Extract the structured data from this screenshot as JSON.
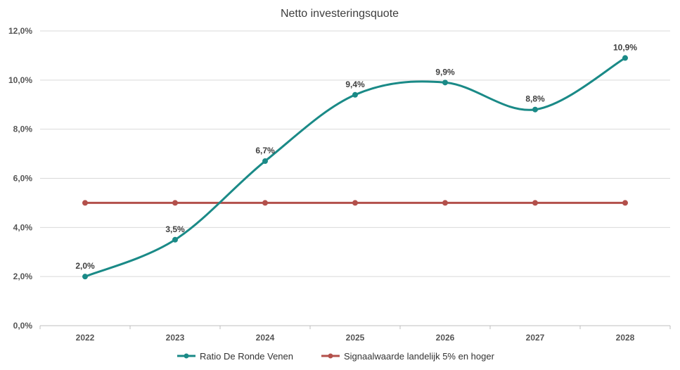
{
  "chart_data": {
    "type": "line",
    "title": "Netto investeringsquote",
    "categories": [
      "2022",
      "2023",
      "2024",
      "2025",
      "2026",
      "2027",
      "2028"
    ],
    "y_tick_labels": [
      "0,0%",
      "2,0%",
      "4,0%",
      "6,0%",
      "8,0%",
      "10,0%",
      "12,0%"
    ],
    "ylim": [
      0,
      12
    ],
    "grid": true,
    "legend_position": "bottom",
    "series": [
      {
        "name": "Ratio De Ronde Venen",
        "values": [
          2.0,
          3.5,
          6.7,
          9.4,
          9.9,
          8.8,
          10.9
        ],
        "labels": [
          "2,0%",
          "3,5%",
          "6,7%",
          "9,4%",
          "9,9%",
          "8,8%",
          "10,9%"
        ],
        "color": "#1a8a87",
        "smooth": true
      },
      {
        "name": "Signaalwaarde landelijk 5% en hoger",
        "values": [
          5,
          5,
          5,
          5,
          5,
          5,
          5
        ],
        "color": "#b3504b",
        "smooth": false
      }
    ]
  }
}
